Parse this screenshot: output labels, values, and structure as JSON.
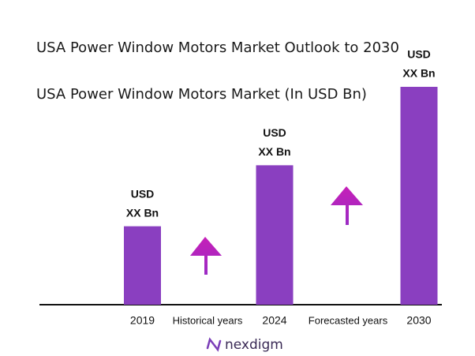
{
  "chart_data": {
    "type": "bar",
    "title": "USA Power Window Motors Market Outlook to 2030",
    "subtitle": "USA Power Window Motors Market (In USD Bn)",
    "categories": [
      "2019",
      "2024",
      "2030"
    ],
    "values": [
      36,
      64,
      100
    ],
    "value_labels": [
      [
        "USD",
        "XX Bn"
      ],
      [
        "USD",
        "XX Bn"
      ],
      [
        "USD",
        "XX Bn"
      ]
    ],
    "color": "#8a3fc0",
    "ylim": [
      0,
      100
    ],
    "annotations": [
      "Historical years",
      "Forecasted years"
    ],
    "logo": "nexdigm"
  }
}
